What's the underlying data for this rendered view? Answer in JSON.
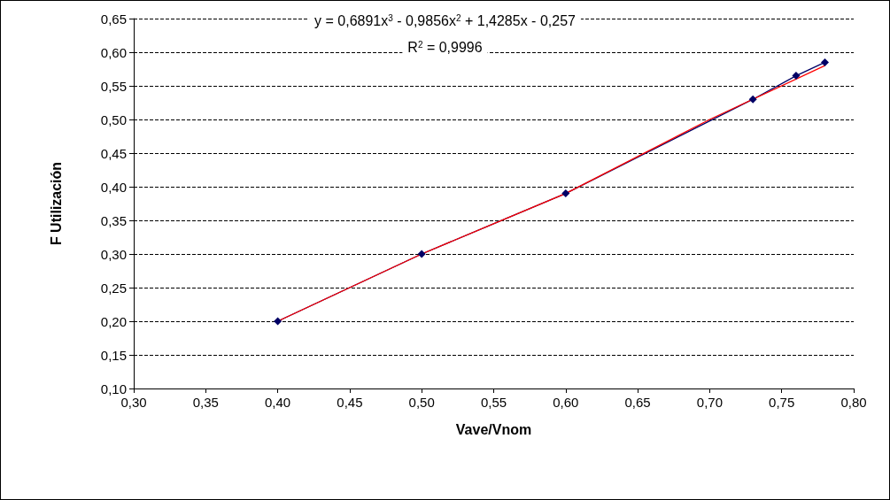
{
  "chart_data": {
    "type": "line",
    "xlabel": "Vave/Vnom",
    "ylabel": "F Utilización",
    "annotations": [
      "y = 0,6891x$^{3}$ - 0,9856x$^{2}$ + 1,4285x - 0,257",
      "R$^{2}$ = 0,9996"
    ],
    "series": [
      {
        "color": "#000066",
        "marker": "diamond",
        "x": [
          0.4,
          0.5,
          0.6,
          0.73,
          0.76,
          0.78
        ],
        "values": [
          0.2,
          0.3,
          0.39,
          0.53,
          0.565,
          0.585
        ]
      },
      {
        "color": "#ff0000",
        "marker": "none",
        "x": [
          0.4,
          0.5,
          0.6,
          0.7,
          0.78
        ],
        "values": [
          0.2,
          0.3,
          0.39,
          0.5,
          0.58
        ]
      }
    ],
    "xlim": [
      0.3,
      0.8
    ],
    "xticks": [
      {
        "value": 0.3,
        "label": "0,30"
      },
      {
        "value": 0.35,
        "label": "0,35"
      },
      {
        "value": 0.4,
        "label": "0,40"
      },
      {
        "value": 0.45,
        "label": "0,45"
      },
      {
        "value": 0.5,
        "label": "0,50"
      },
      {
        "value": 0.55,
        "label": "0,55"
      },
      {
        "value": 0.6,
        "label": "0,60"
      },
      {
        "value": 0.65,
        "label": "0,65"
      },
      {
        "value": 0.7,
        "label": "0,70"
      },
      {
        "value": 0.75,
        "label": "0,75"
      },
      {
        "value": 0.8,
        "label": "0,80"
      }
    ],
    "ylim": [
      0.1,
      0.65
    ],
    "yticks": [
      {
        "value": 0.1,
        "label": "0,10"
      },
      {
        "value": 0.15,
        "label": "0,15"
      },
      {
        "value": 0.2,
        "label": "0,20"
      },
      {
        "value": 0.25,
        "label": "0,25"
      },
      {
        "value": 0.3,
        "label": "0,30"
      },
      {
        "value": 0.35,
        "label": "0,35"
      },
      {
        "value": 0.4,
        "label": "0,40"
      },
      {
        "value": 0.45,
        "label": "0,45"
      },
      {
        "value": 0.5,
        "label": "0,50"
      },
      {
        "value": 0.55,
        "label": "0,55"
      },
      {
        "value": 0.6,
        "label": "0,60"
      },
      {
        "value": 0.65,
        "label": "0,65"
      }
    ],
    "grid": "y",
    "line_style": "solid"
  }
}
